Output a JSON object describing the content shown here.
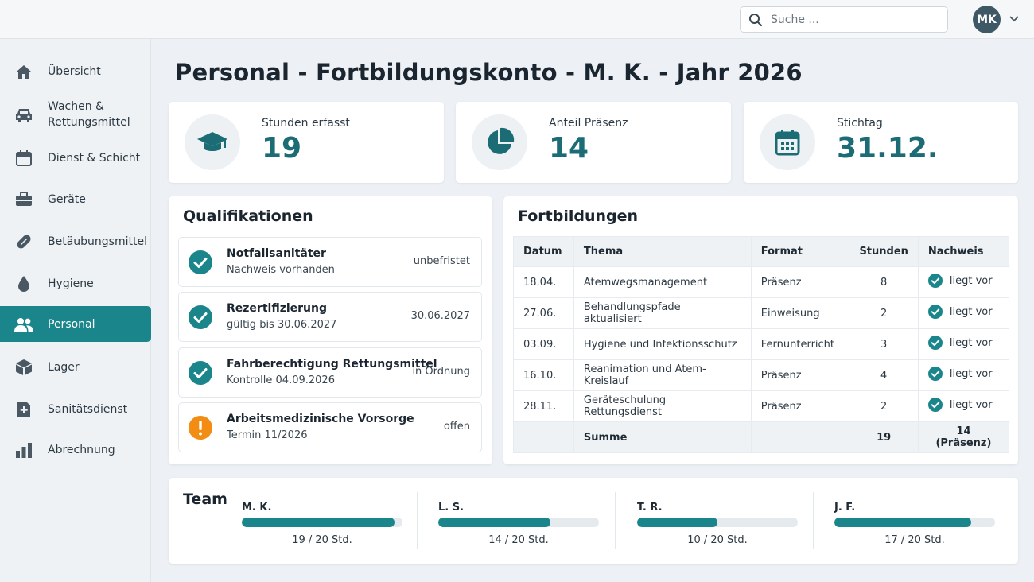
{
  "search": {
    "placeholder": "Suche ..."
  },
  "user": {
    "initials": "MK"
  },
  "sidebar": {
    "items": [
      {
        "label": "Übersicht",
        "icon": "home-icon"
      },
      {
        "label": "Wachen & Rettungsmittel",
        "icon": "car-icon"
      },
      {
        "label": "Dienst & Schicht",
        "icon": "calendar-icon"
      },
      {
        "label": "Geräte",
        "icon": "briefcase-icon"
      },
      {
        "label": "Betäubungsmittel",
        "icon": "pill-icon"
      },
      {
        "label": "Hygiene",
        "icon": "drop-icon"
      },
      {
        "label": "Personal",
        "icon": "people-icon",
        "active": true
      },
      {
        "label": "Lager",
        "icon": "box-icon"
      },
      {
        "label": "Sanitätsdienst",
        "icon": "medical-file-icon"
      },
      {
        "label": "Abrechnung",
        "icon": "bar-chart-icon"
      }
    ]
  },
  "page": {
    "title": "Personal - Fortbildungskonto - M. K. - Jahr 2026"
  },
  "kpis": [
    {
      "label": "Stunden erfasst",
      "value": "19",
      "icon": "graduation-cap-icon"
    },
    {
      "label": "Anteil Präsenz",
      "value": "14",
      "icon": "pie-chart-icon"
    },
    {
      "label": "Stichtag",
      "value": "31.12.",
      "icon": "calendar-icon"
    }
  ],
  "qualifications": {
    "title": "Qualifikationen",
    "items": [
      {
        "title": "Notfallsanitäter",
        "subtitle": "Nachweis vorhanden",
        "status": "unbefristet",
        "state": "ok"
      },
      {
        "title": "Rezertifizierung",
        "subtitle": "gültig bis 30.06.2027",
        "status": "30.06.2027",
        "state": "ok"
      },
      {
        "title": "Fahrberechtigung Rettungsmittel",
        "subtitle": "Kontrolle 04.09.2026",
        "status": "in Ordnung",
        "state": "ok"
      },
      {
        "title": "Arbeitsmedizinische Vorsorge",
        "subtitle": "Termin 11/2026",
        "status": "offen",
        "state": "warning"
      }
    ]
  },
  "trainings": {
    "title": "Fortbildungen",
    "columns": [
      "Datum",
      "Thema",
      "Format",
      "Stunden",
      "Nachweis"
    ],
    "rows": [
      {
        "date": "18.04.",
        "topic": "Atemwegsmanagement",
        "format": "Präsenz",
        "hours": "8",
        "proof": "liegt vor"
      },
      {
        "date": "27.06.",
        "topic": "Behandlungspfade aktualisiert",
        "format": "Einweisung",
        "hours": "2",
        "proof": "liegt vor"
      },
      {
        "date": "03.09.",
        "topic": "Hygiene und Infektionsschutz",
        "format": "Fernunterricht",
        "hours": "3",
        "proof": "liegt vor"
      },
      {
        "date": "16.10.",
        "topic": "Reanimation und Atem-Kreislauf",
        "format": "Präsenz",
        "hours": "4",
        "proof": "liegt vor"
      },
      {
        "date": "28.11.",
        "topic": "Geräteschulung Rettungsdienst",
        "format": "Präsenz",
        "hours": "2",
        "proof": "liegt vor"
      }
    ],
    "sum": {
      "label": "Summe",
      "hours": "19",
      "proof": "14 (Präsenz)"
    }
  },
  "team": {
    "title": "Team",
    "members": [
      {
        "name": "M. K.",
        "hours_label": "19 / 20 Std.",
        "progress": 0.95
      },
      {
        "name": "L. S.",
        "hours_label": "14 / 20 Std.",
        "progress": 0.7
      },
      {
        "name": "T. R.",
        "hours_label": "10 / 20 Std.",
        "progress": 0.5
      },
      {
        "name": "J. F.",
        "hours_label": "17 / 20 Std.",
        "progress": 0.85
      }
    ]
  },
  "colors": {
    "accent": "#1a868b",
    "ok": "#1a868b",
    "warning": "#f28c12",
    "kpi_value": "#1b6c74"
  }
}
